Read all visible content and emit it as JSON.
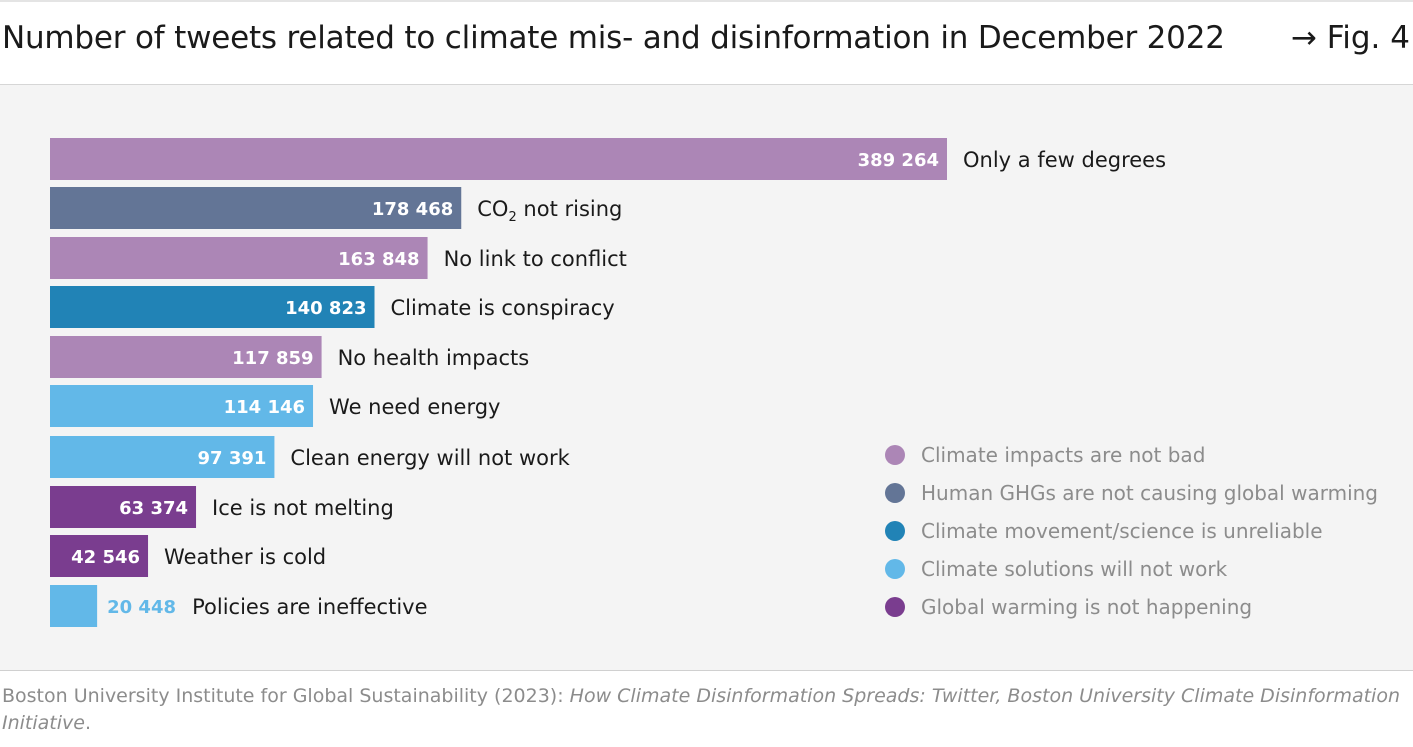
{
  "header": {
    "title": "Number of tweets related to climate mis- and disinformation in December 2022",
    "fig_ref": "→ Fig. 4"
  },
  "chart_data": {
    "type": "bar",
    "orientation": "horizontal",
    "title": "Number of tweets related to climate mis- and disinformation in December 2022",
    "xlim": [
      0,
      389264
    ],
    "grid": false,
    "legend_placement": "bottom-right",
    "bars": [
      {
        "label": "Only a few degrees",
        "value_text": "389 264",
        "value": 389264,
        "group": "Climate impacts are not bad"
      },
      {
        "label": "CO₂ not rising",
        "value_text": "178 468",
        "value": 178468,
        "group": "Human GHGs are not causing global warming"
      },
      {
        "label": "No link to conflict",
        "value_text": "163 848",
        "value": 163848,
        "group": "Climate impacts are not bad"
      },
      {
        "label": "Climate is conspiracy",
        "value_text": "140 823",
        "value": 140823,
        "group": "Climate movement/science is unreliable"
      },
      {
        "label": "No health impacts",
        "value_text": "117 859",
        "value": 117859,
        "group": "Climate impacts are not bad"
      },
      {
        "label": "We need energy",
        "value_text": "114 146",
        "value": 114146,
        "group": "Climate solutions will not work"
      },
      {
        "label": "Clean energy will not work",
        "value_text": "97 391",
        "value": 97391,
        "group": "Climate solutions will not work"
      },
      {
        "label": "Ice is not melting",
        "value_text": "63 374",
        "value": 63374,
        "group": "Global warming is not happening"
      },
      {
        "label": "Weather is cold",
        "value_text": "42 546",
        "value": 42546,
        "group": "Global warming is not happening"
      },
      {
        "label": "Policies are ineffective",
        "value_text": "20 448",
        "value": 20448,
        "group": "Climate solutions will not work"
      }
    ],
    "legend": [
      {
        "name": "Climate impacts are not bad",
        "color": "#ac86b6"
      },
      {
        "name": "Human GHGs are not causing global warming",
        "color": "#637596"
      },
      {
        "name": "Climate movement/science is unreliable",
        "color": "#2183b6"
      },
      {
        "name": "Climate solutions will not work",
        "color": "#62b8e8"
      },
      {
        "name": "Global warming is not happening",
        "color": "#7a3d8f"
      }
    ]
  },
  "source": {
    "text": "Boston University Institute for Global Sustainability (2023): ",
    "italic_text": "How Climate Disinformation Spreads: Twitter, Boston University Climate Disinformation Initiative",
    "end": "."
  }
}
